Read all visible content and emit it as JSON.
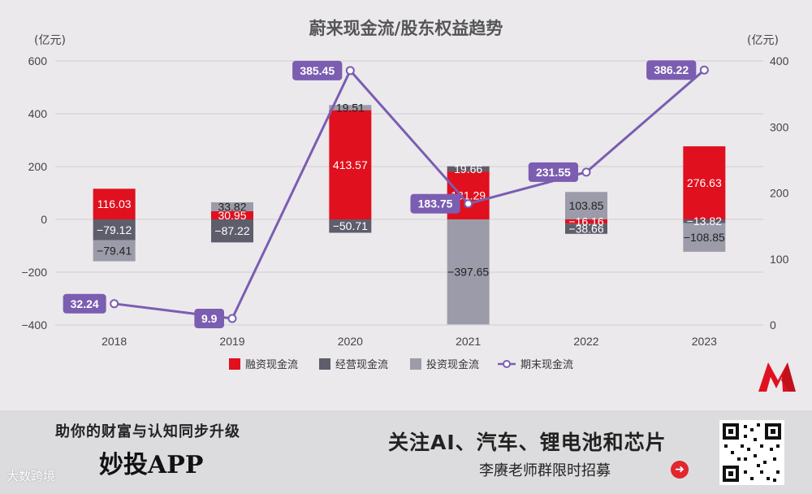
{
  "chart_data": {
    "type": "bar",
    "title": "蔚来现金流/股东权益趋势",
    "y_unit_left": "(亿元)",
    "y_unit_right": "(亿元)",
    "categories": [
      "2018",
      "2019",
      "2020",
      "2021",
      "2022",
      "2023"
    ],
    "ylim_left": [
      -400,
      600
    ],
    "yticks_left": [
      "600",
      "400",
      "200",
      "0",
      "−200",
      "−400"
    ],
    "ylim_right": [
      0,
      400
    ],
    "yticks_right": [
      "400",
      "300",
      "200",
      "100",
      "0"
    ],
    "bar_series": [
      {
        "name": "融资现金流",
        "color": "#e0101e",
        "values": [
          116.03,
          30.95,
          413.57,
          181.29,
          -16.16,
          276.63
        ],
        "labels": [
          "116.03",
          "30.95",
          "413.57",
          "181.29",
          "−16.16",
          "276.63"
        ]
      },
      {
        "name": "经营现金流",
        "color": "#5e5d6b",
        "values": [
          -79.12,
          -87.22,
          -50.71,
          19.66,
          -38.66,
          -13.82
        ],
        "labels": [
          "−79.12",
          "−87.22",
          "−50.71",
          "19.66",
          "−38.66",
          "−13.82"
        ]
      },
      {
        "name": "投资现金流",
        "color": "#9c9ba9",
        "values": [
          -79.41,
          33.82,
          19.51,
          -397.65,
          103.85,
          -108.85
        ],
        "labels": [
          "−79.41",
          "33.82",
          "19.51",
          "−397.65",
          "103.85",
          "−108.85"
        ]
      }
    ],
    "line_series": {
      "name": "期末现金流",
      "color": "#7b5db1",
      "axis": "right",
      "values": [
        32.24,
        9.9,
        385.45,
        183.75,
        231.55,
        386.22
      ],
      "labels": [
        "32.24",
        "9.9",
        "385.45",
        "183.75",
        "231.55",
        "386.22"
      ]
    },
    "legend": [
      "融资现金流",
      "经营现金流",
      "投资现金流",
      "期末现金流"
    ],
    "legend_position": "bottom-center",
    "grid": true
  },
  "footer": {
    "slogan": "助你的财富与认知同步升级",
    "app_name": "妙投APP",
    "follow_text": "关注AI、汽车、锂电池和芯片",
    "teacher_text": "李赓老师群限时招募",
    "watermark": "大数跨境",
    "arrow_icon": "arrow-right-icon",
    "qr_icon": "qr-code-icon",
    "logo_icon": "m-brand-logo-icon"
  }
}
